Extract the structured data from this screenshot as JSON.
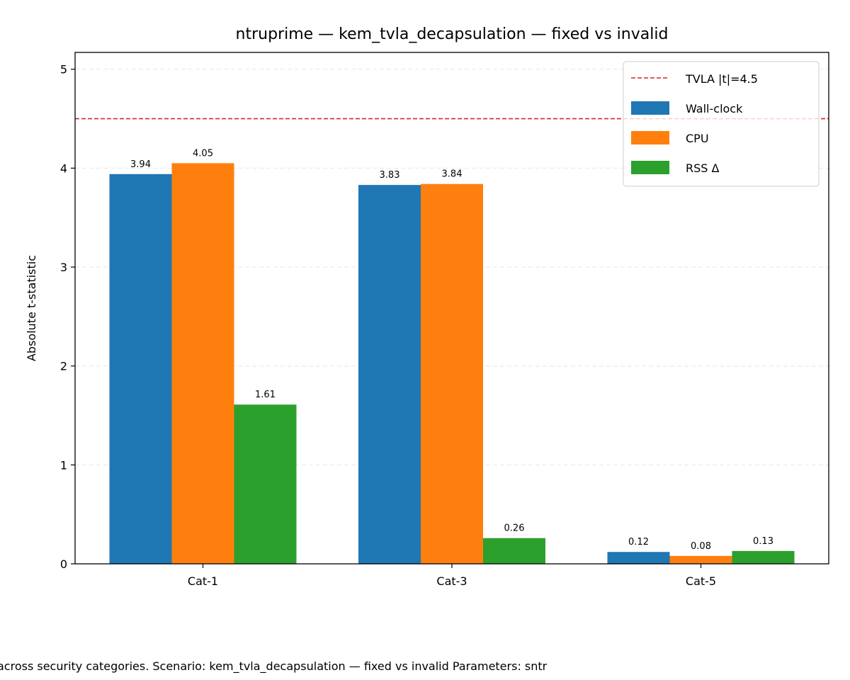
{
  "chart_data": {
    "type": "bar",
    "title": "ntruprime — kem_tvla_decapsulation — fixed vs invalid",
    "xlabel": "",
    "ylabel": "Absolute t-statistic",
    "categories": [
      "Cat-1",
      "Cat-3",
      "Cat-5"
    ],
    "series": [
      {
        "name": "Wall-clock",
        "color": "#1f77b4",
        "values": [
          3.94,
          3.83,
          0.12
        ],
        "labels": [
          "3.94",
          "3.83",
          "0.12"
        ]
      },
      {
        "name": "CPU",
        "color": "#ff7f0e",
        "values": [
          4.05,
          3.84,
          0.08
        ],
        "labels": [
          "4.05",
          "3.84",
          "0.08"
        ]
      },
      {
        "name": "RSS Δ",
        "color": "#2ca02c",
        "values": [
          1.61,
          0.26,
          0.13
        ],
        "labels": [
          "1.61",
          "0.26",
          "0.13"
        ]
      }
    ],
    "threshold": {
      "value": 4.5,
      "label": "TVLA |t|=4.5",
      "color": "#d62728",
      "style": "dashed"
    },
    "ylim": [
      0,
      5.17
    ],
    "yticks": [
      0,
      1,
      2,
      3,
      4,
      5
    ],
    "ytick_labels": [
      "0",
      "1",
      "2",
      "3",
      "4",
      "5"
    ],
    "grid": "y, dashed, light",
    "legend_position": "top-right"
  },
  "caption": "across security categories. Scenario: kem_tvla_decapsulation — fixed vs invalid Parameters: sntr"
}
